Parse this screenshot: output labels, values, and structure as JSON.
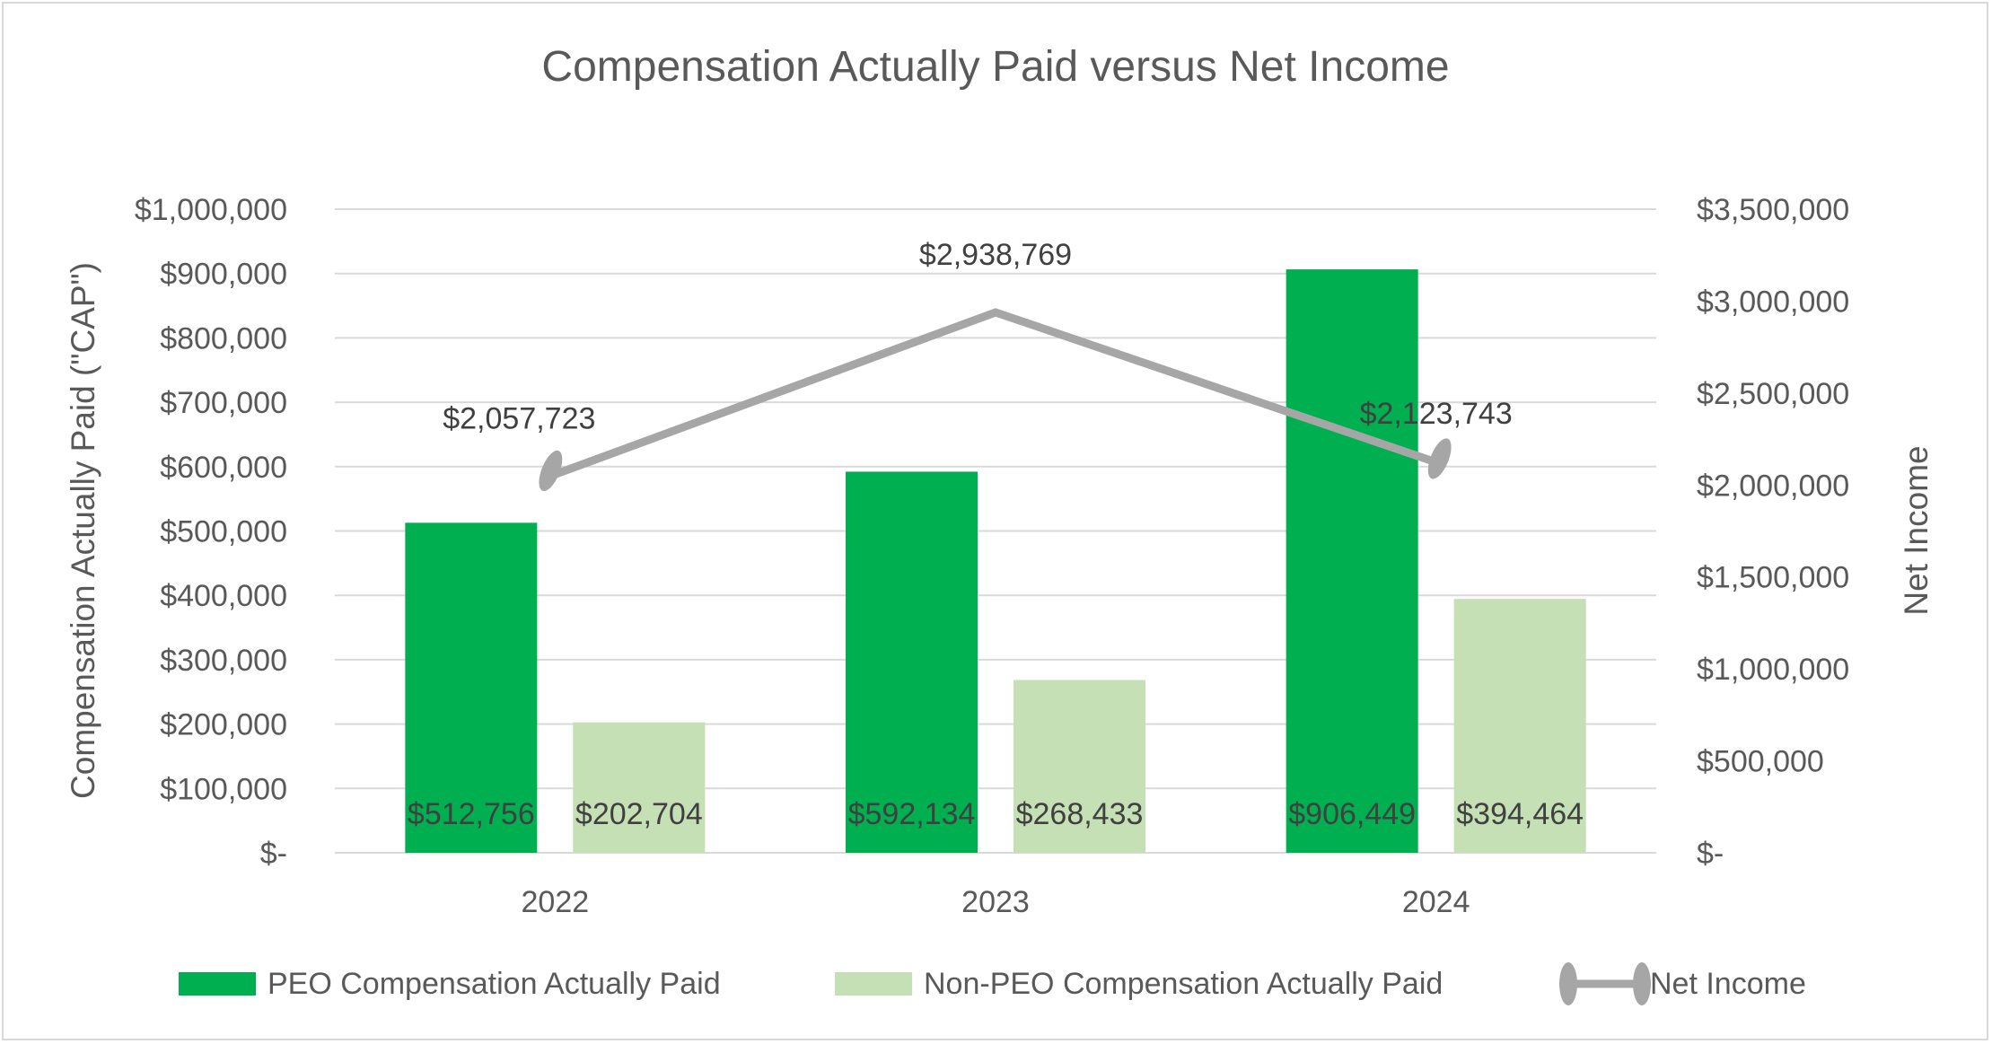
{
  "chart_data": {
    "type": "bar",
    "title": "Compensation Actually Paid versus Net Income",
    "categories": [
      "2022",
      "2023",
      "2024"
    ],
    "series": [
      {
        "name": "PEO Compensation Actually Paid",
        "kind": "bar",
        "axis": "left",
        "color": "#00b050",
        "values": [
          512756,
          592134,
          906449
        ],
        "labels": [
          "$512,756",
          "$592,134",
          "$906,449"
        ]
      },
      {
        "name": "Non-PEO Compensation Actually Paid",
        "kind": "bar",
        "axis": "left",
        "color": "#c5e0b4",
        "values": [
          202704,
          268433,
          394464
        ],
        "labels": [
          "$202,704",
          "$268,433",
          "$394,464"
        ]
      },
      {
        "name": "Net Income",
        "kind": "line",
        "axis": "right",
        "color": "#a6a6a6",
        "values": [
          2057723,
          2938769,
          2123743
        ],
        "labels": [
          "$2,057,723",
          "$2,938,769",
          "$2,123,743"
        ]
      }
    ],
    "ylabel": "Compensation Actually Paid (\"CAP\")",
    "y2label": "Net Income",
    "ylim": [
      0,
      1000000
    ],
    "y2lim": [
      0,
      3500000
    ],
    "yticks": [
      0,
      100000,
      200000,
      300000,
      400000,
      500000,
      600000,
      700000,
      800000,
      900000,
      1000000
    ],
    "ytick_labels": [
      "$-",
      "$100,000",
      "$200,000",
      "$300,000",
      "$400,000",
      "$500,000",
      "$600,000",
      "$700,000",
      "$800,000",
      "$900,000",
      "$1,000,000"
    ],
    "y2ticks": [
      0,
      500000,
      1000000,
      1500000,
      2000000,
      2500000,
      3000000,
      3500000
    ],
    "y2tick_labels": [
      "$-",
      "$500,000",
      "$1,000,000",
      "$1,500,000",
      "$2,000,000",
      "$2,500,000",
      "$3,000,000",
      "$3,500,000"
    ],
    "grid": true,
    "legend_position": "bottom",
    "colors": {
      "gridline": "#d9d9d9",
      "text": "#595959",
      "label_text": "#404040"
    }
  }
}
